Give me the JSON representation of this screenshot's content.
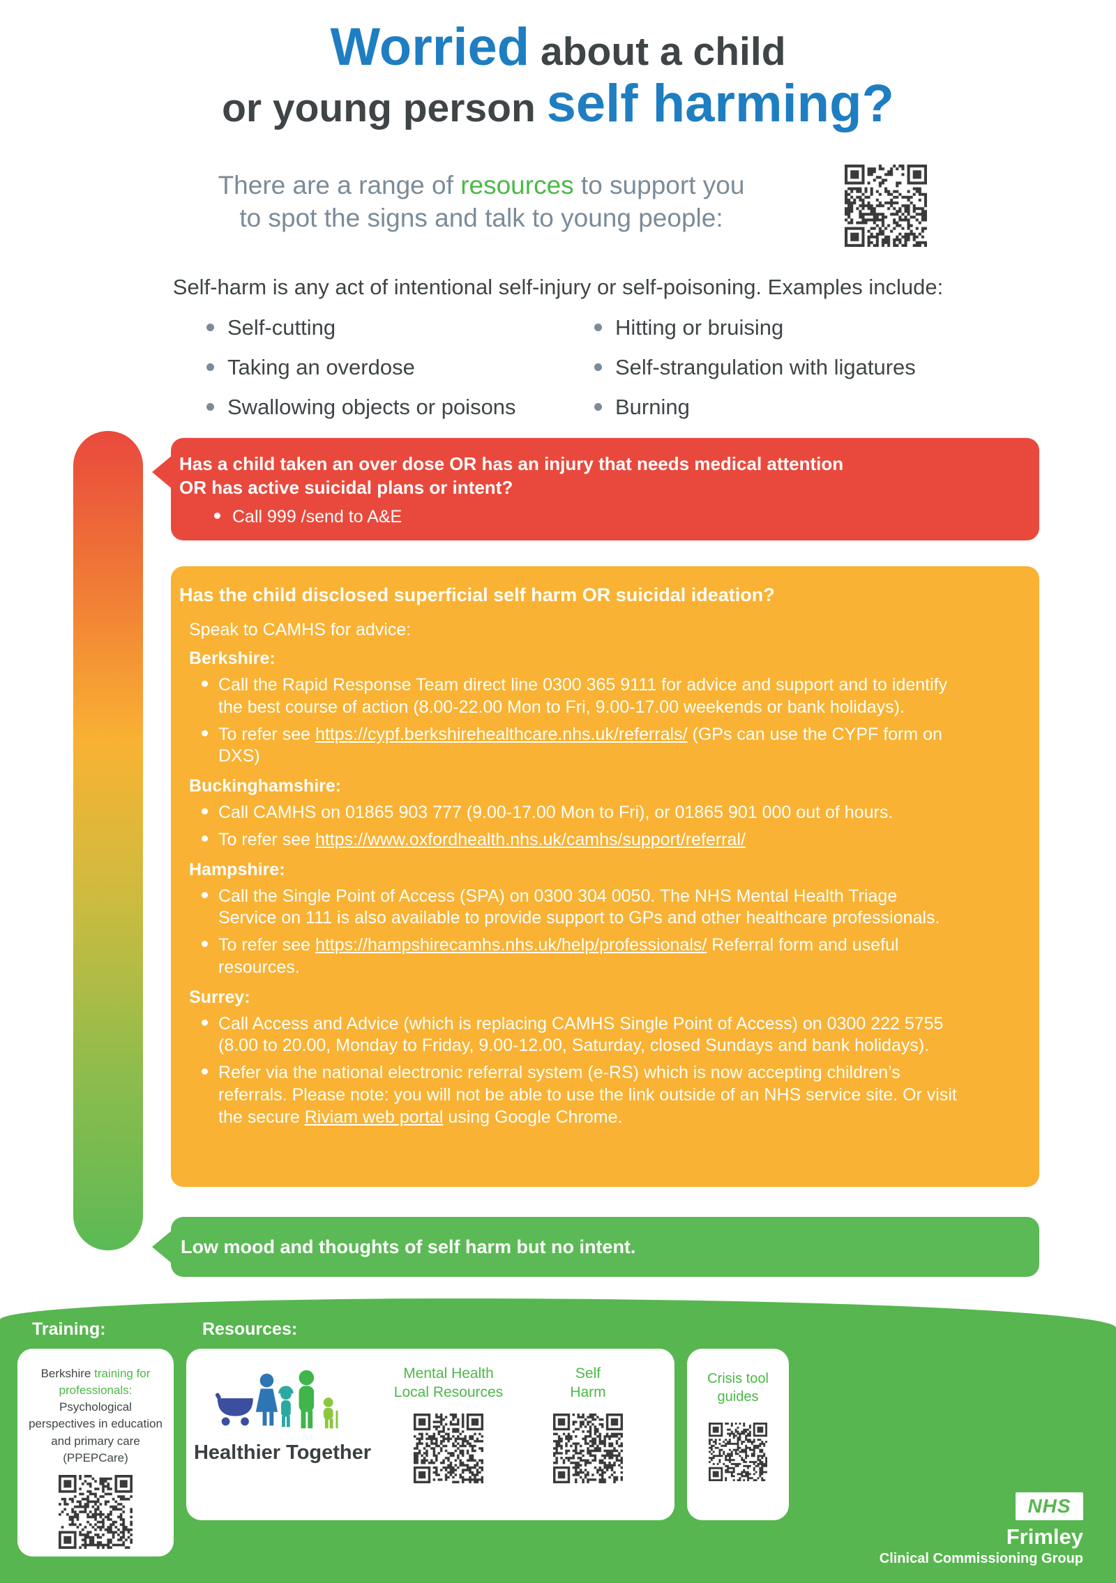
{
  "title": {
    "blue1": "Worried",
    "dark1": " about a child",
    "dark2": "or young person ",
    "blue2": "self harming?"
  },
  "subtitle": {
    "seg1": "There are a range of ",
    "seg2": "resources",
    "seg3": " to support you",
    "line2": "to spot the signs and talk to young people:"
  },
  "intro": "Self-harm is any act of intentional self-injury or self-poisoning. Examples include:",
  "examples": {
    "left": [
      "Self-cutting",
      "Taking an overdose",
      "Swallowing objects or poisons"
    ],
    "right": [
      "Hitting or bruising",
      "Self-strangulation with ligatures",
      "Burning"
    ]
  },
  "red_box": {
    "heading_line1": "Has a child taken an over dose OR has an injury that needs medical attention",
    "heading_line2": "OR has active suicidal plans or intent?",
    "bullet": "Call 999 /send to A&E"
  },
  "orange_box": {
    "heading": "Has the child disclosed superficial self harm OR suicidal ideation?",
    "intro": "Speak to CAMHS for advice:",
    "sections": [
      {
        "name": "Berkshire:",
        "bullets": [
          [
            {
              "text": "Call the Rapid Response Team direct line 0300 365 9111 for advice and support and to identify the best course of action (8.00-22.00 Mon to Fri, 9.00-17.00 weekends or bank holidays)."
            }
          ],
          [
            {
              "text": "To refer see "
            },
            {
              "link": "https://cypf.berkshirehealthcare.nhs.uk/referrals/"
            },
            {
              "text": "  (GPs can use the CYPF form on DXS)"
            }
          ]
        ]
      },
      {
        "name": "Buckinghamshire:",
        "bullets": [
          [
            {
              "text": "Call CAMHS on 01865 903 777 (9.00-17.00 Mon to Fri), or 01865 901 000 out of hours."
            }
          ],
          [
            {
              "text": "To refer see "
            },
            {
              "link": "https://www.oxfordhealth.nhs.uk/camhs/support/referral/"
            }
          ]
        ]
      },
      {
        "name": "Hampshire:",
        "bullets": [
          [
            {
              "text": "Call the Single Point of Access (SPA) on 0300 304 0050. The NHS Mental Health Triage Service on 111 is also available to provide support to GPs and other healthcare professionals."
            }
          ],
          [
            {
              "text": "To refer see "
            },
            {
              "link": "https://hampshirecamhs.nhs.uk/help/professionals/"
            },
            {
              "text": " Referral form and useful resources."
            }
          ]
        ]
      },
      {
        "name": "Surrey:",
        "bullets": [
          [
            {
              "text": "Call Access and Advice (which is replacing CAMHS Single Point of Access) on 0300 222 5755 (8.00 to 20.00, Monday to Friday, 9.00-12.00, Saturday, closed Sundays and bank holidays)."
            }
          ],
          [
            {
              "text": "Refer via the national electronic referral system (e-RS) which is now accepting children’s referrals. Please note: you will not be able to use the link outside of an NHS service site. Or visit the secure "
            },
            {
              "link": "Riviam web portal"
            },
            {
              "text": " using Google Chrome."
            }
          ]
        ]
      }
    ]
  },
  "green_box": {
    "text": "Low mood and thoughts of self harm but no intent."
  },
  "footer": {
    "training_label": "Training:",
    "resources_label": "Resources:",
    "training_card": {
      "seg1": "Berkshire ",
      "seg2": "training for professionals:",
      "seg3": " Psychological perspectives in education and primary care (PPEPCare)"
    },
    "resources_card": {
      "logo_caption": "Healthier Together",
      "qr1_label": [
        "Mental Health",
        "Local Resources"
      ],
      "qr2_label": [
        "Self",
        "Harm"
      ]
    },
    "crisis_card": {
      "label": [
        "Crisis tool",
        "guides"
      ]
    },
    "nhs": {
      "logo": "NHS",
      "org": "Frimley",
      "sub": "Clinical Commissioning Group"
    }
  },
  "icons": {
    "qr_top": "qr-code",
    "qr_training": "qr-code",
    "qr_mental_health": "qr-code",
    "qr_self_harm": "qr-code",
    "qr_crisis": "qr-code",
    "logo": "healthier-together-family-logo"
  },
  "colors": {
    "title_blue": "#1e7ec1",
    "body_dark": "#3f4547",
    "subtitle_gray": "#7b8b99",
    "accent_green": "#4cb848",
    "red_box": "#e9493d",
    "orange_box": "#f9b233",
    "green_box": "#5bba55",
    "footer_band": "#57b64f"
  }
}
